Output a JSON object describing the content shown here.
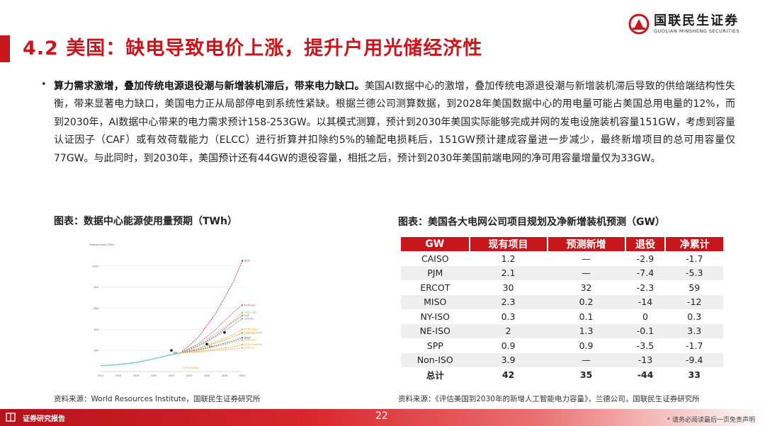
{
  "header": {
    "title": "4.2 美国：缺电导致电价上涨，提升户用光储经济性",
    "logo_cn": "国联民生证券",
    "logo_en": "GUOLIAN MINSHENG SECURITIES"
  },
  "body": {
    "bullet": "•",
    "lead": "算力需求激增，叠加传统电源退役潮与新增装机滞后，带来电力缺口。",
    "text": "美国AI数据中心的激增，叠加传统电源退役潮与新增装机滞后导致的供给端结构性失衡，带来显著电力缺口，美国电力正从局部停电到系统性紧缺。根据兰德公司测算数据，到2028年美国数据中心的用电量可能占美国总用电量的12%，而到2030年，AI数据中心带来的电力需求预计158-253GW。以其模式测算，预计到2030年美国实际能够完成并网的发电设施装机容量151GW，考虑到容量认证因子（CAF）或有效荷载能力（ELCC）进行折算并扣除约5%的输配电损耗后，151GW预计建成容量进一步减少，最终新增项目的总可用容量仅77GW。与此同时，到2030年，美国预计还有44GW的退役容量，相抵之后，预计到2030年美国前端电网的净可用容量增量仅为33GW。"
  },
  "figure_left": {
    "caption": "图表：数据中心能源使用量预期（TWh）",
    "source": "资料来源：World Resources Institute，国联民生证券研究所"
  },
  "figure_right": {
    "caption": "图表：美国各大电网公司项目规划及净新增装机预测（GW）",
    "source": "资料来源：《评估美国到2030年的新增人工智能电力容量》，兰德公司，国联民生证券研究所"
  },
  "table": {
    "headers": [
      "GW",
      "现有项目",
      "预测新增",
      "退役",
      "净累计"
    ],
    "rows": [
      [
        "CAISO",
        "1.2",
        "—",
        "-2.9",
        "-1.7"
      ],
      [
        "PJM",
        "2.1",
        "—",
        "-7.4",
        "-5.3"
      ],
      [
        "ERCOT",
        "30",
        "32",
        "-2.3",
        "59"
      ],
      [
        "MISO",
        "2.3",
        "0.2",
        "-14",
        "-12"
      ],
      [
        "NY-ISO",
        "0.3",
        "0.1",
        "0",
        "0.3"
      ],
      [
        "NE-ISO",
        "2",
        "1.3",
        "-0.1",
        "3.3"
      ],
      [
        "SPP",
        "0.9",
        "0.9",
        "-3.5",
        "-1.7"
      ],
      [
        "Non-ISO",
        "3.9",
        "—",
        "-13",
        "-9.4"
      ],
      [
        "总计",
        "42",
        "35",
        "-44",
        "33"
      ]
    ]
  },
  "chart_data": {
    "type": "line",
    "ylabel": "Terawatt-hours (TWh)",
    "x": [
      2014,
      2016,
      2018,
      2020,
      2022,
      2024,
      2026,
      2028,
      2030
    ],
    "ylim": [
      0,
      1100
    ],
    "yticks": [
      200,
      400,
      600,
      800,
      1000
    ],
    "historical": {
      "name": "EPRI historical",
      "x": [
        2014,
        2016,
        2018,
        2020,
        2022,
        2023
      ],
      "y": [
        55,
        65,
        85,
        120,
        160,
        175
      ]
    },
    "series": [
      {
        "name": "BCG",
        "color": "#c8161d",
        "x": [
          2023,
          2025,
          2027,
          2029,
          2030
        ],
        "y": [
          175,
          320,
          550,
          850,
          1050
        ]
      },
      {
        "name": "McKinsey",
        "color": "#d04a7a",
        "x": [
          2023,
          2025,
          2027,
          2029,
          2030
        ],
        "y": [
          175,
          260,
          400,
          560,
          630
        ]
      },
      {
        "name": "LBNL high",
        "color": "#7ac26b",
        "x": [
          2023,
          2025,
          2027,
          2029,
          2030
        ],
        "y": [
          175,
          250,
          360,
          480,
          560
        ]
      },
      {
        "name": "SAF",
        "color": "#e85a3a",
        "x": [
          2023,
          2025,
          2027,
          2029,
          2030
        ],
        "y": [
          175,
          240,
          340,
          470,
          530
        ]
      },
      {
        "name": "Jefferies",
        "color": "#3a9ad9",
        "x": [
          2023,
          2025,
          2027,
          2029,
          2030
        ],
        "y": [
          175,
          240,
          330,
          440,
          500
        ]
      },
      {
        "name": "LBNL low",
        "color": "#9ed39a",
        "x": [
          2023,
          2025,
          2027,
          2029,
          2030
        ],
        "y": [
          175,
          215,
          270,
          330,
          360
        ]
      },
      {
        "name": "EPRI higher",
        "color": "#f0a030",
        "x": [
          2023,
          2025,
          2027,
          2029,
          2030
        ],
        "y": [
          175,
          220,
          280,
          350,
          400
        ]
      },
      {
        "name": "Goldman Sachs",
        "color": "#f0a030",
        "x": [
          2023,
          2025,
          2027,
          2029,
          2030
        ],
        "y": [
          175,
          215,
          270,
          330,
          370
        ]
      },
      {
        "name": "BNEF",
        "color": "#2a4a9a",
        "x": [
          2023,
          2025,
          2027,
          2029,
          2030
        ],
        "y": [
          175,
          205,
          245,
          290,
          320
        ]
      },
      {
        "name": "EPRI high",
        "color": "#f0a030",
        "x": [
          2023,
          2025,
          2027,
          2029,
          2030
        ],
        "y": [
          175,
          200,
          235,
          275,
          300
        ]
      },
      {
        "name": "EPRI moderate",
        "color": "#f0a030",
        "x": [
          2023,
          2025,
          2027,
          2029,
          2030
        ],
        "y": [
          175,
          190,
          210,
          235,
          255
        ]
      },
      {
        "name": "EPRI low",
        "color": "#f0a030",
        "x": [
          2023,
          2025,
          2027,
          2029,
          2030
        ],
        "y": [
          175,
          185,
          200,
          215,
          225
        ]
      }
    ],
    "markers": [
      {
        "label": "IEA",
        "x": 2022,
        "y": 200
      },
      {
        "label": "IEA",
        "x": 2026,
        "y": 260
      },
      {
        "label": "",
        "x": 2028,
        "y": 370
      }
    ]
  },
  "footer": {
    "label": "证券研究报告",
    "page": "22",
    "disclaimer": "* 请务必阅读最后一页免责声明"
  }
}
